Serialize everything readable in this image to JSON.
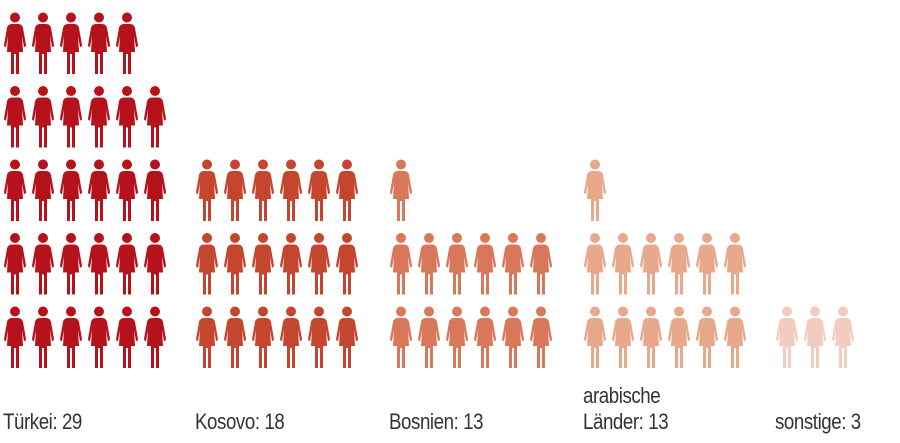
{
  "chart_data": {
    "type": "pictogram",
    "icon": "person-figure-icon",
    "per_row": 6,
    "categories": [
      {
        "label_lines": [
          "Türkei: 29"
        ],
        "value": 29,
        "color": "#b5121b"
      },
      {
        "label_lines": [
          "Kosovo: 18"
        ],
        "value": 18,
        "color": "#c5462e"
      },
      {
        "label_lines": [
          "Bosnien: 13"
        ],
        "value": 13,
        "color": "#d9775a"
      },
      {
        "label_lines": [
          "arabische",
          "Länder: 13"
        ],
        "value": 13,
        "color": "#e8a88c"
      },
      {
        "label_lines": [
          "sonstige: 3"
        ],
        "value": 3,
        "color": "#f2cdbf"
      }
    ]
  }
}
